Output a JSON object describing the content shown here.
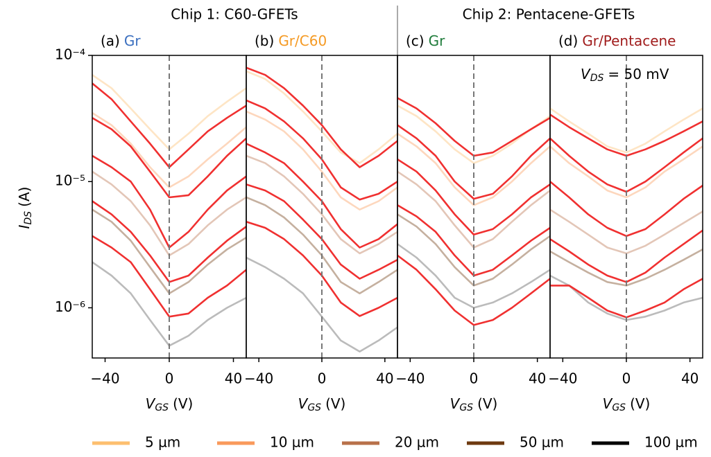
{
  "headings": [
    "Chip 1: C60-GFETs",
    "Chip 2: Pentacene-GFETs"
  ],
  "legend": [
    {
      "name": "5 µm",
      "color": "#fdbf6f"
    },
    {
      "name": "10 µm",
      "color": "#f99a5b"
    },
    {
      "name": "20 µm",
      "color": "#b8714a"
    },
    {
      "name": "50 µm",
      "color": "#6e3a10"
    },
    {
      "name": "100 µm",
      "color": "#000000"
    }
  ],
  "chart_data": [
    {
      "type": "line",
      "label": "(a)",
      "title": "Gr",
      "title_color": "#3b6fbf",
      "log_y": true,
      "vline": 0,
      "ylabel": {
        "symbol": "I",
        "subscript": "DS",
        "unit": "(A)"
      },
      "xlabel": {
        "symbol": "V",
        "subscript": "GS",
        "unit": "(V)"
      },
      "xlim": [
        -48,
        48
      ],
      "xticks": [
        {
          "value": -40,
          "label": "−40"
        },
        0,
        40
      ],
      "ylim": [
        4e-07,
        0.0001
      ],
      "yticks": [
        {
          "value": 1e-06,
          "label": "10⁻⁶"
        },
        {
          "value": 1e-05,
          "label": "10⁻⁵"
        },
        {
          "value": 0.0001,
          "label": "10⁻⁴"
        }
      ],
      "x": [
        -48,
        -36,
        -24,
        -12,
        0,
        12,
        24,
        36,
        48
      ],
      "series": [
        {
          "color": "#fdbf6f66",
          "values": [
            7e-05,
            5.5e-05,
            3.8e-05,
            2.6e-05,
            1.8e-05,
            2.4e-05,
            3.3e-05,
            4.3e-05,
            5.5e-05
          ]
        },
        {
          "color": "#f99a5b66",
          "values": [
            3.5e-05,
            2.8e-05,
            2e-05,
            1.3e-05,
            9e-06,
            1.1e-05,
            1.5e-05,
            2e-05,
            2.7e-05
          ]
        },
        {
          "color": "#b8714a66",
          "values": [
            1.2e-05,
            9.5e-06,
            7e-06,
            4.5e-06,
            2.6e-06,
            3.2e-06,
            4.5e-06,
            6e-06,
            7.5e-06
          ]
        },
        {
          "color": "#6e3a1066",
          "values": [
            6e-06,
            4.8e-06,
            3.4e-06,
            2.1e-06,
            1.3e-06,
            1.6e-06,
            2.2e-06,
            2.9e-06,
            3.6e-06
          ]
        },
        {
          "color": "#00000044",
          "values": [
            2.3e-06,
            1.8e-06,
            1.3e-06,
            8e-07,
            5e-07,
            6e-07,
            8e-07,
            1e-06,
            1.2e-06
          ]
        },
        {
          "color": "#f03030",
          "values": [
            6e-05,
            4.5e-05,
            3e-05,
            2e-05,
            1.3e-05,
            1.8e-05,
            2.5e-05,
            3.2e-05,
            4e-05
          ]
        },
        {
          "color": "#f03030",
          "values": [
            3.2e-05,
            2.6e-05,
            1.9e-05,
            1.2e-05,
            7.5e-06,
            7.8e-06,
            1.1e-05,
            1.6e-05,
            2.2e-05
          ]
        },
        {
          "color": "#f03030",
          "values": [
            1.6e-05,
            1.3e-05,
            1e-05,
            6e-06,
            3e-06,
            4e-06,
            6e-06,
            8.5e-06,
            1.1e-05
          ]
        },
        {
          "color": "#f03030",
          "values": [
            7e-06,
            5.5e-06,
            4e-06,
            2.6e-06,
            1.6e-06,
            1.8e-06,
            2.5e-06,
            3.4e-06,
            4.4e-06
          ]
        },
        {
          "color": "#f03030",
          "values": [
            3.7e-06,
            3e-06,
            2.3e-06,
            1.4e-06,
            8.5e-07,
            9e-07,
            1.2e-06,
            1.5e-06,
            2e-06
          ]
        }
      ]
    },
    {
      "type": "line",
      "label": "(b)",
      "title": "Gr/C60",
      "title_color": "#f59a23",
      "log_y": true,
      "vline": 0,
      "xlabel": {
        "symbol": "V",
        "subscript": "GS",
        "unit": "(V)"
      },
      "xlim": [
        -48,
        48
      ],
      "xticks": [
        {
          "value": -40,
          "label": "−40"
        },
        0,
        40
      ],
      "ylim": [
        4e-07,
        0.0001
      ],
      "x": [
        -48,
        -36,
        -24,
        -12,
        0,
        12,
        24,
        36,
        48
      ],
      "series": [
        {
          "color": "#fdbf6f66",
          "values": [
            7.5e-05,
            6.5e-05,
            5e-05,
            3.6e-05,
            2.5e-05,
            1.7e-05,
            1.4e-05,
            1.8e-05,
            2.4e-05
          ]
        },
        {
          "color": "#f99a5b66",
          "values": [
            3.6e-05,
            3.1e-05,
            2.5e-05,
            1.8e-05,
            1.2e-05,
            7.5e-06,
            6e-06,
            7e-06,
            9e-06
          ]
        },
        {
          "color": "#b8714a66",
          "values": [
            1.6e-05,
            1.4e-05,
            1.1e-05,
            8e-06,
            5.5e-06,
            3.5e-06,
            2.7e-06,
            3.2e-06,
            4e-06
          ]
        },
        {
          "color": "#6e3a1066",
          "values": [
            7.5e-06,
            6.5e-06,
            5.2e-06,
            3.8e-06,
            2.6e-06,
            1.6e-06,
            1.3e-06,
            1.6e-06,
            2e-06
          ]
        },
        {
          "color": "#00000044",
          "values": [
            2.5e-06,
            2.1e-06,
            1.7e-06,
            1.3e-06,
            8.5e-07,
            5.5e-07,
            4.5e-07,
            5.5e-07,
            7e-07
          ]
        },
        {
          "color": "#f03030",
          "values": [
            8e-05,
            7e-05,
            5.5e-05,
            4e-05,
            2.8e-05,
            1.8e-05,
            1.3e-05,
            1.6e-05,
            2.1e-05
          ]
        },
        {
          "color": "#f03030",
          "values": [
            4.4e-05,
            3.8e-05,
            3e-05,
            2.2e-05,
            1.5e-05,
            9e-06,
            7.2e-06,
            8e-06,
            1e-05
          ]
        },
        {
          "color": "#f03030",
          "values": [
            2e-05,
            1.7e-05,
            1.4e-05,
            1e-05,
            7e-06,
            4.2e-06,
            3e-06,
            3.5e-06,
            4.6e-06
          ]
        },
        {
          "color": "#f03030",
          "values": [
            9.5e-06,
            8.5e-06,
            7e-06,
            5e-06,
            3.5e-06,
            2.2e-06,
            1.7e-06,
            2e-06,
            2.4e-06
          ]
        },
        {
          "color": "#f03030",
          "values": [
            4.8e-06,
            4.3e-06,
            3.5e-06,
            2.6e-06,
            1.8e-06,
            1.1e-06,
            8.6e-07,
            1e-06,
            1.2e-06
          ]
        }
      ]
    },
    {
      "type": "line",
      "label": "(c)",
      "title": "Gr",
      "title_color": "#1e7b3a",
      "log_y": true,
      "vline": 0,
      "xlabel": {
        "symbol": "V",
        "subscript": "GS",
        "unit": "(V)"
      },
      "xlim": [
        -48,
        48
      ],
      "xticks": [
        {
          "value": -40,
          "label": "−40"
        },
        0,
        40
      ],
      "ylim": [
        4e-07,
        0.0001
      ],
      "x": [
        -48,
        -36,
        -24,
        -12,
        0,
        12,
        24,
        36,
        48
      ],
      "series": [
        {
          "color": "#fdbf6f66",
          "values": [
            4e-05,
            3.3e-05,
            2.5e-05,
            1.8e-05,
            1.4e-05,
            1.6e-05,
            2e-05,
            2.6e-05,
            3.3e-05
          ]
        },
        {
          "color": "#f99a5b66",
          "values": [
            2.4e-05,
            1.9e-05,
            1.4e-05,
            9e-06,
            6.5e-06,
            7.5e-06,
            1e-05,
            1.4e-05,
            1.9e-05
          ]
        },
        {
          "color": "#b8714a66",
          "values": [
            1.2e-05,
            9.5e-06,
            7e-06,
            4.5e-06,
            3e-06,
            3.5e-06,
            4.8e-06,
            6.5e-06,
            8.5e-06
          ]
        },
        {
          "color": "#6e3a1066",
          "values": [
            5.5e-06,
            4.4e-06,
            3.2e-06,
            2.1e-06,
            1.5e-06,
            1.7e-06,
            2.2e-06,
            2.9e-06,
            3.7e-06
          ]
        },
        {
          "color": "#00000044",
          "values": [
            3.2e-06,
            2.5e-06,
            1.8e-06,
            1.2e-06,
            1e-06,
            1.1e-06,
            1.3e-06,
            1.6e-06,
            2e-06
          ]
        },
        {
          "color": "#f03030",
          "values": [
            4.6e-05,
            3.8e-05,
            2.9e-05,
            2.1e-05,
            1.6e-05,
            1.7e-05,
            2.1e-05,
            2.6e-05,
            3.2e-05
          ]
        },
        {
          "color": "#f03030",
          "values": [
            2.8e-05,
            2.2e-05,
            1.6e-05,
            1e-05,
            7.3e-06,
            8e-06,
            1.1e-05,
            1.6e-05,
            2.2e-05
          ]
        },
        {
          "color": "#f03030",
          "values": [
            1.5e-05,
            1.2e-05,
            8.5e-06,
            5.5e-06,
            3.8e-06,
            4.2e-06,
            5.5e-06,
            7.5e-06,
            9.5e-06
          ]
        },
        {
          "color": "#f03030",
          "values": [
            6.5e-06,
            5.3e-06,
            4e-06,
            2.6e-06,
            1.8e-06,
            2e-06,
            2.6e-06,
            3.4e-06,
            4.3e-06
          ]
        },
        {
          "color": "#f03030",
          "values": [
            2.6e-06,
            2e-06,
            1.4e-06,
            9.5e-07,
            7.3e-07,
            8e-07,
            1e-06,
            1.3e-06,
            1.7e-06
          ]
        }
      ]
    },
    {
      "type": "line",
      "label": "(d)",
      "title": "Gr/Pentacene",
      "title_color": "#a01c1c",
      "log_y": true,
      "vline": 0,
      "xlabel": {
        "symbol": "V",
        "subscript": "GS",
        "unit": "(V)"
      },
      "annotation": {
        "symbol": "V",
        "subscript": "DS",
        "text": "= 50 mV"
      },
      "xlim": [
        -48,
        48
      ],
      "xticks": [
        {
          "value": -40,
          "label": "−40"
        },
        0,
        40
      ],
      "ylim": [
        4e-07,
        0.0001
      ],
      "x": [
        -48,
        -36,
        -24,
        -12,
        0,
        12,
        24,
        36,
        48
      ],
      "series": [
        {
          "color": "#fdbf6f66",
          "values": [
            3.8e-05,
            3e-05,
            2.4e-05,
            1.9e-05,
            1.7e-05,
            2e-05,
            2.5e-05,
            3.1e-05,
            3.8e-05
          ]
        },
        {
          "color": "#f99a5b66",
          "values": [
            1.9e-05,
            1.4e-05,
            1.1e-05,
            8.5e-06,
            7.5e-06,
            9e-06,
            1.2e-05,
            1.5e-05,
            1.9e-05
          ]
        },
        {
          "color": "#b8714a66",
          "values": [
            6e-06,
            4.8e-06,
            3.8e-06,
            3e-06,
            2.7e-06,
            3.1e-06,
            3.8e-06,
            4.7e-06,
            5.8e-06
          ]
        },
        {
          "color": "#6e3a1066",
          "values": [
            2.8e-06,
            2.3e-06,
            1.9e-06,
            1.6e-06,
            1.5e-06,
            1.7e-06,
            2e-06,
            2.4e-06,
            2.9e-06
          ]
        },
        {
          "color": "#00000044",
          "values": [
            1.8e-06,
            1.5e-06,
            1.1e-06,
            9e-07,
            8e-07,
            8.5e-07,
            9.5e-07,
            1.1e-06,
            1.2e-06
          ]
        },
        {
          "color": "#f03030",
          "values": [
            3.4e-05,
            2.7e-05,
            2.2e-05,
            1.8e-05,
            1.6e-05,
            1.8e-05,
            2.1e-05,
            2.5e-05,
            3e-05
          ]
        },
        {
          "color": "#f03030",
          "values": [
            2.2e-05,
            1.6e-05,
            1.2e-05,
            9.5e-06,
            8.3e-06,
            1e-05,
            1.3e-05,
            1.7e-05,
            2.2e-05
          ]
        },
        {
          "color": "#f03030",
          "values": [
            1e-05,
            7.5e-06,
            5.5e-06,
            4.3e-06,
            3.7e-06,
            4.2e-06,
            5.5e-06,
            7.3e-06,
            9.3e-06
          ]
        },
        {
          "color": "#f03030",
          "values": [
            3.5e-06,
            2.8e-06,
            2.2e-06,
            1.8e-06,
            1.6e-06,
            1.9e-06,
            2.5e-06,
            3.2e-06,
            4.1e-06
          ]
        },
        {
          "color": "#f03030",
          "values": [
            1.5e-06,
            1.5e-06,
            1.2e-06,
            9.5e-07,
            8.4e-07,
            9.5e-07,
            1.1e-06,
            1.4e-06,
            1.7e-06
          ]
        }
      ]
    }
  ]
}
